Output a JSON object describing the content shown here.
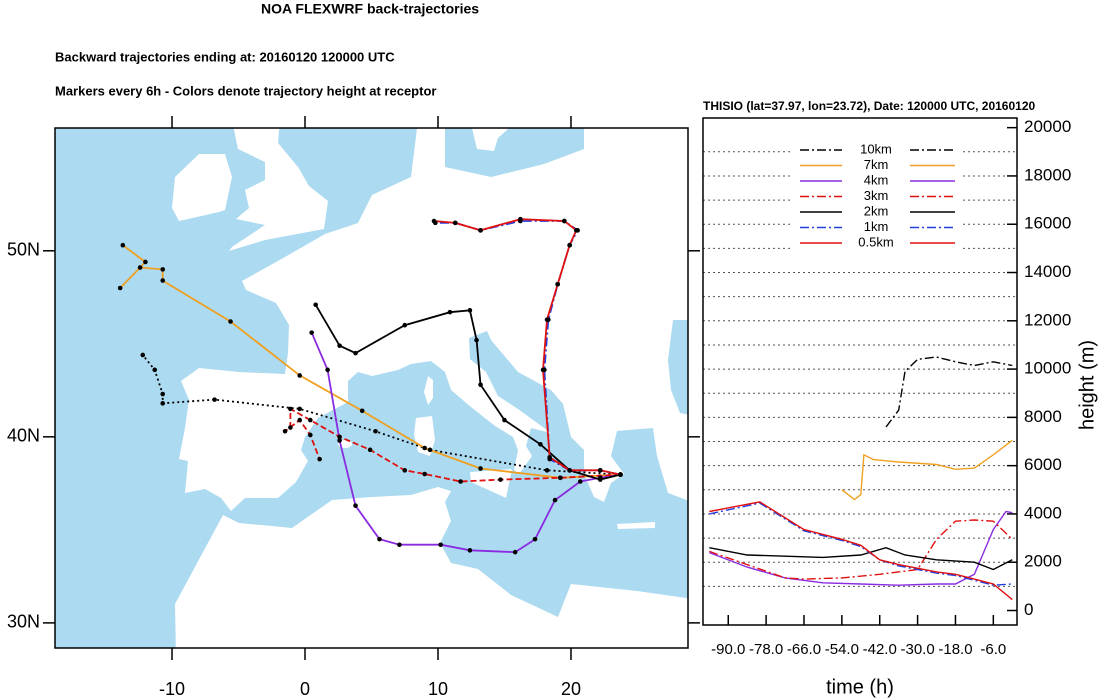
{
  "chart_data": [
    {
      "type": "map",
      "title": "NOA FLEXWRF back-trajectories",
      "subtitle": "Backward trajectories ending at: 20160120  120000 UTC",
      "note": "Markers every 6h - Colors denote trajectory height at receptor",
      "xlim": [
        -18.8,
        28.8
      ],
      "ylim": [
        28.65,
        56.6
      ],
      "xticks": [
        -10,
        0,
        10,
        20
      ],
      "yticks": [
        {
          "value": 30,
          "label": "30N"
        },
        {
          "value": 40,
          "label": "40N"
        },
        {
          "value": 50,
          "label": "50N"
        }
      ],
      "series": [
        {
          "color": "#000000",
          "dash": "dot",
          "x": [
            23.72,
            18.2,
            9.4,
            5.3,
            -0.4,
            -6.8,
            -10.7,
            -10.7,
            -11.3,
            -12.2
          ],
          "values": [
            37.97,
            38.2,
            39.3,
            40.3,
            41.5,
            42.0,
            41.8,
            42.3,
            43.6,
            44.4
          ]
        },
        {
          "color": "#f0a020",
          "dash": "solid",
          "x": [
            23.72,
            19.2,
            13.2,
            9.0,
            4.3,
            -0.4,
            -5.6,
            -10.7,
            -10.7,
            -12.4,
            -13.9,
            -12.0,
            -13.7
          ],
          "values": [
            37.97,
            37.8,
            38.3,
            39.4,
            41.4,
            43.3,
            46.2,
            48.4,
            49.0,
            49.1,
            48.0,
            49.4,
            50.3
          ]
        },
        {
          "color": "#8a2be2",
          "dash": "solid",
          "x": [
            23.72,
            22.2,
            20.7,
            18.8,
            17.3,
            15.8,
            12.4,
            10.2,
            7.1,
            5.6,
            3.8,
            2.6,
            1.7,
            0.5
          ],
          "values": [
            37.97,
            37.8,
            37.6,
            36.6,
            34.5,
            33.8,
            33.9,
            34.2,
            34.2,
            34.5,
            36.3,
            39.8,
            43.6,
            45.6
          ]
        },
        {
          "color": "#e01010",
          "dash": "dash",
          "x": [
            23.72,
            19.2,
            14.7,
            11.7,
            9.0,
            7.5,
            4.9,
            2.6,
            0.4,
            -1.1,
            -1.1,
            -1.5,
            -0.4,
            0.4,
            1.1
          ],
          "values": [
            37.97,
            37.8,
            37.7,
            37.6,
            38.0,
            38.2,
            39.3,
            40.0,
            40.9,
            41.5,
            40.5,
            40.3,
            40.9,
            40.1,
            38.8
          ]
        },
        {
          "color": "#000000",
          "dash": "solid",
          "x": [
            23.72,
            22.2,
            19.9,
            17.7,
            15.0,
            13.2,
            12.9,
            12.4,
            10.9,
            7.5,
            3.8,
            2.6,
            0.8
          ],
          "values": [
            37.97,
            37.7,
            38.2,
            39.6,
            40.9,
            42.8,
            45.2,
            46.8,
            46.7,
            46.0,
            44.5,
            44.9,
            47.1
          ]
        },
        {
          "color": "#2040e0",
          "dash": "dashdot",
          "x": [
            23.72,
            22.2,
            19.9,
            18.4,
            18.0,
            18.3,
            19.0,
            19.9,
            20.5,
            19.5,
            16.2,
            13.2,
            11.3,
            9.8
          ],
          "values": [
            37.97,
            38.2,
            38.2,
            38.8,
            43.6,
            46.3,
            48.2,
            50.3,
            51.1,
            51.6,
            51.6,
            51.1,
            51.5,
            51.5
          ]
        },
        {
          "color": "#e01010",
          "dash": "solid",
          "x": [
            23.72,
            22.2,
            19.9,
            18.4,
            17.9,
            18.2,
            19.0,
            19.9,
            20.4,
            19.5,
            16.2,
            13.2,
            11.3,
            9.7
          ],
          "values": [
            37.97,
            38.2,
            38.2,
            38.9,
            43.6,
            46.3,
            48.2,
            50.3,
            51.1,
            51.6,
            51.7,
            51.1,
            51.5,
            51.6
          ]
        }
      ]
    },
    {
      "type": "line",
      "title": "THISIO (lat=37.97,  lon=23.72), Date: 120000 UTC, 20160120",
      "xlabel": "time (h)",
      "ylabel": "height (m)",
      "xlim": [
        -98,
        1.5
      ],
      "ylim": [
        -600,
        20400
      ],
      "xticks": [
        {
          "value": -90,
          "label": "-90.0"
        },
        {
          "value": -78,
          "label": "-78.0"
        },
        {
          "value": -66,
          "label": "-66.0"
        },
        {
          "value": -54,
          "label": "-54.0"
        },
        {
          "value": -42,
          "label": "-42.0"
        },
        {
          "value": -30,
          "label": "-30.0"
        },
        {
          "value": -18,
          "label": "-18.0"
        },
        {
          "value": -6,
          "label": "-6.0"
        }
      ],
      "yticks": [
        0,
        2000,
        4000,
        6000,
        8000,
        10000,
        12000,
        14000,
        16000,
        18000,
        20000
      ],
      "ygrid": [
        1000,
        2000,
        3000,
        4000,
        5000,
        6000,
        7000,
        8000,
        9000,
        10000,
        11000,
        12000,
        13000,
        14000,
        15000,
        16000,
        17000,
        18000,
        19000
      ],
      "series": [
        {
          "name": "10km",
          "color": "#000000",
          "dash": "dashdot",
          "x": [
            -40,
            -36,
            -34,
            -30,
            -24,
            -18,
            -12,
            -6,
            0
          ],
          "values": [
            7600,
            8300,
            9900,
            10400,
            10500,
            10300,
            10150,
            10300,
            10150
          ]
        },
        {
          "name": "7km",
          "color": "#f0a020",
          "dash": "solid",
          "x": [
            -54,
            -50,
            -48,
            -47,
            -44,
            -36,
            -24,
            -18,
            -12,
            -6,
            0
          ],
          "values": [
            5000,
            4600,
            4800,
            6450,
            6250,
            6150,
            6050,
            5850,
            5900,
            6450,
            7050
          ]
        },
        {
          "name": "4km",
          "color": "#8a2be2",
          "dash": "solid",
          "x": [
            -96,
            -84,
            -72,
            -60,
            -48,
            -36,
            -24,
            -18,
            -12,
            -6,
            -2,
            0
          ],
          "values": [
            2400,
            1800,
            1350,
            1150,
            1100,
            1050,
            1100,
            1100,
            1500,
            3350,
            4100,
            4050
          ]
        },
        {
          "name": "3km",
          "color": "#e01010",
          "dash": "dashdot",
          "x": [
            -96,
            -84,
            -72,
            -66,
            -54,
            -42,
            -30,
            -24,
            -18,
            -12,
            -6,
            0
          ],
          "values": [
            2450,
            1900,
            1350,
            1300,
            1350,
            1500,
            1700,
            2950,
            3700,
            3750,
            3700,
            2950
          ]
        },
        {
          "name": "2km",
          "color": "#000000",
          "dash": "solid",
          "x": [
            -96,
            -84,
            -72,
            -60,
            -48,
            -40,
            -34,
            -24,
            -12,
            -6,
            0
          ],
          "values": [
            2600,
            2300,
            2250,
            2200,
            2300,
            2600,
            2300,
            2100,
            2000,
            1700,
            2100
          ]
        },
        {
          "name": "1km",
          "color": "#2040e0",
          "dash": "dashdot",
          "x": [
            -96,
            -80,
            -66,
            -54,
            -48,
            -42,
            -36,
            -24,
            -18,
            -12,
            -6,
            0
          ],
          "values": [
            4000,
            4450,
            3300,
            2900,
            2650,
            2100,
            1850,
            1550,
            1450,
            1250,
            1050,
            1100
          ]
        },
        {
          "name": "0.5km",
          "color": "#e01010",
          "dash": "solid",
          "x": [
            -96,
            -80,
            -66,
            -54,
            -48,
            -42,
            -36,
            -24,
            -18,
            -12,
            -6,
            0
          ],
          "values": [
            4100,
            4500,
            3350,
            2950,
            2700,
            2100,
            1900,
            1600,
            1500,
            1300,
            1100,
            450
          ]
        }
      ]
    }
  ]
}
